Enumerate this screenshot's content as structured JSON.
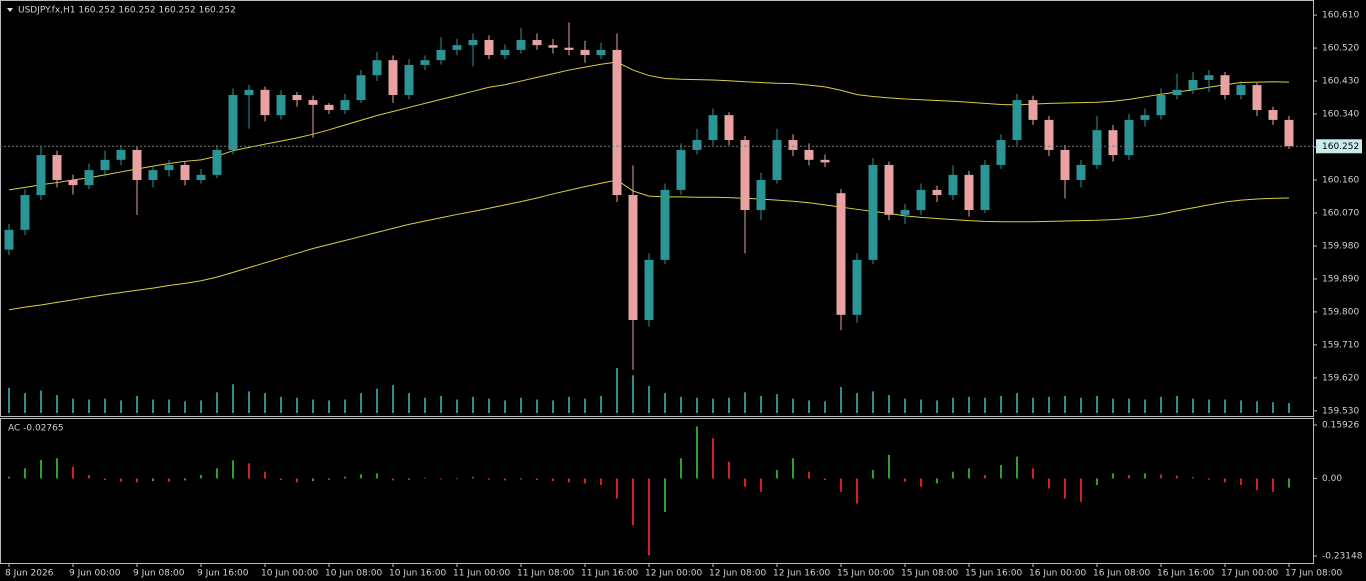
{
  "chart_data": [
    {
      "type": "candlestick",
      "title": "USDJPY.fx,H1  160.252 160.252 160.252 160.252",
      "categories": [
        "8 Jun 2026",
        null,
        null,
        null,
        "9 Jun 00:00",
        null,
        null,
        null,
        "9 Jun 08:00",
        null,
        null,
        null,
        "9 Jun 16:00",
        null,
        null,
        null,
        "10 Jun 00:00",
        null,
        null,
        null,
        "10 Jun 08:00",
        null,
        null,
        null,
        "10 Jun 16:00",
        null,
        null,
        null,
        "11 Jun 00:00",
        null,
        null,
        null,
        "11 Jun 08:00",
        null,
        null,
        null,
        "11 Jun 16:00",
        null,
        null,
        null,
        "12 Jun 00:00",
        null,
        null,
        null,
        "12 Jun 08:00",
        null,
        null,
        null,
        "12 Jun 16:00",
        null,
        null,
        null,
        "15 Jun 00:00",
        null,
        null,
        null,
        "15 Jun 08:00",
        null,
        null,
        null,
        "15 Jun 16:00",
        null,
        null,
        null,
        "16 Jun 00:00",
        null,
        null,
        null,
        "16 Jun 08:00",
        null,
        null,
        null,
        "16 Jun 16:00",
        null,
        null,
        null,
        "17 Jun 00:00",
        null,
        null,
        null,
        "17 Jun 08:00"
      ],
      "open": [
        159.97,
        160.024,
        160.119,
        160.228,
        160.16,
        160.146,
        160.187,
        160.215,
        160.242,
        160.16,
        160.187,
        160.201,
        160.16,
        160.174,
        160.242,
        160.392,
        160.406,
        160.337,
        160.392,
        160.378,
        160.365,
        160.351,
        160.378,
        160.446,
        160.487,
        160.392,
        160.474,
        160.487,
        160.515,
        160.528,
        160.542,
        160.501,
        160.515,
        160.542,
        160.528,
        160.521,
        160.515,
        160.501,
        160.515,
        160.119,
        159.778,
        159.942,
        160.133,
        160.242,
        160.269,
        160.337,
        160.269,
        160.078,
        160.16,
        160.269,
        160.242,
        160.215,
        160.124,
        159.792,
        159.942,
        160.201,
        160.065,
        160.078,
        160.133,
        160.119,
        160.174,
        160.078,
        160.201,
        160.269,
        160.378,
        160.324,
        160.242,
        160.16,
        160.201,
        160.296,
        160.228,
        160.324,
        160.337,
        160.392,
        160.406,
        160.433,
        160.446,
        160.392,
        160.419,
        160.351,
        160.324
      ],
      "high": [
        160.04,
        160.135,
        160.25,
        160.24,
        160.175,
        160.205,
        160.24,
        160.255,
        160.25,
        160.2,
        160.215,
        160.21,
        160.19,
        160.255,
        160.41,
        160.42,
        160.415,
        160.405,
        160.4,
        160.39,
        160.37,
        160.395,
        160.46,
        160.51,
        160.5,
        160.49,
        160.5,
        160.55,
        160.545,
        160.56,
        160.555,
        160.53,
        160.575,
        160.56,
        160.545,
        160.59,
        160.54,
        160.535,
        160.56,
        160.2,
        159.96,
        160.15,
        160.26,
        160.3,
        160.355,
        160.345,
        160.28,
        160.18,
        160.3,
        160.285,
        160.26,
        160.23,
        160.135,
        159.96,
        160.22,
        160.21,
        160.095,
        160.15,
        160.145,
        160.2,
        160.185,
        160.215,
        160.285,
        160.395,
        160.39,
        160.335,
        160.255,
        160.215,
        160.335,
        160.31,
        160.34,
        160.355,
        160.41,
        160.45,
        160.455,
        160.46,
        160.455,
        160.43,
        160.425,
        160.36,
        160.335
      ],
      "low": [
        159.955,
        160.01,
        160.105,
        160.14,
        160.12,
        160.135,
        160.17,
        160.2,
        160.065,
        160.14,
        160.17,
        160.145,
        160.15,
        160.165,
        160.23,
        160.3,
        160.32,
        160.325,
        160.36,
        160.275,
        160.34,
        160.34,
        160.37,
        160.43,
        160.37,
        160.38,
        160.46,
        160.475,
        160.5,
        160.47,
        160.49,
        160.49,
        160.505,
        160.515,
        160.505,
        160.5,
        160.48,
        160.49,
        160.1,
        159.642,
        159.76,
        159.93,
        160.12,
        160.23,
        160.255,
        160.255,
        159.96,
        160.05,
        160.15,
        160.225,
        160.2,
        160.195,
        159.75,
        159.77,
        159.93,
        160.05,
        160.04,
        160.065,
        160.1,
        160.105,
        160.06,
        160.07,
        160.19,
        160.255,
        160.31,
        160.225,
        160.11,
        160.14,
        160.19,
        160.21,
        160.215,
        160.305,
        160.325,
        160.38,
        160.395,
        160.4,
        160.38,
        160.38,
        160.335,
        160.31,
        160.245
      ],
      "close": [
        160.024,
        160.119,
        160.228,
        160.16,
        160.146,
        160.187,
        160.215,
        160.242,
        160.16,
        160.187,
        160.201,
        160.16,
        160.174,
        160.242,
        160.392,
        160.406,
        160.337,
        160.392,
        160.378,
        160.365,
        160.351,
        160.378,
        160.446,
        160.487,
        160.392,
        160.474,
        160.487,
        160.515,
        160.528,
        160.542,
        160.501,
        160.515,
        160.542,
        160.528,
        160.521,
        160.515,
        160.501,
        160.515,
        160.119,
        159.778,
        159.942,
        160.133,
        160.242,
        160.269,
        160.337,
        160.269,
        160.078,
        160.16,
        160.269,
        160.242,
        160.215,
        160.208,
        159.792,
        159.942,
        160.201,
        160.065,
        160.078,
        160.133,
        160.119,
        160.174,
        160.078,
        160.201,
        160.269,
        160.378,
        160.324,
        160.242,
        160.16,
        160.201,
        160.296,
        160.228,
        160.324,
        160.337,
        160.392,
        160.406,
        160.433,
        160.446,
        160.392,
        160.419,
        160.351,
        160.324,
        160.252
      ],
      "volume": [
        2800,
        2200,
        2500,
        2000,
        1600,
        1500,
        1600,
        1400,
        1900,
        1500,
        1500,
        1300,
        1400,
        2300,
        3200,
        2400,
        2200,
        1800,
        1700,
        1500,
        1400,
        1500,
        2200,
        2700,
        3100,
        2200,
        1700,
        1900,
        1500,
        1800,
        1600,
        1400,
        1700,
        1500,
        1400,
        1800,
        1600,
        1900,
        5000,
        4200,
        3000,
        2200,
        1800,
        1700,
        1600,
        1700,
        2300,
        1900,
        2100,
        1600,
        1400,
        1300,
        2900,
        2200,
        2400,
        2000,
        1600,
        1500,
        1400,
        1700,
        1800,
        1700,
        1900,
        2200,
        1700,
        1800,
        1900,
        1700,
        1900,
        1600,
        1600,
        1500,
        1800,
        1900,
        1600,
        1500,
        1500,
        1400,
        1300,
        1200,
        1100
      ],
      "moving_averages": [
        {
          "color": "#d8d040",
          "values": [
            160.133,
            160.14,
            160.147,
            160.153,
            160.16,
            160.166,
            160.174,
            160.182,
            160.19,
            160.198,
            160.205,
            160.211,
            160.215,
            160.225,
            160.24,
            160.249,
            160.258,
            160.266,
            160.275,
            160.285,
            160.297,
            160.31,
            160.323,
            160.336,
            160.347,
            160.358,
            160.369,
            160.38,
            160.391,
            160.402,
            160.413,
            160.42,
            160.43,
            160.44,
            160.45,
            160.46,
            160.468,
            160.476,
            160.482,
            160.46,
            160.445,
            160.437,
            160.435,
            160.434,
            160.433,
            160.431,
            160.428,
            160.426,
            160.424,
            160.423,
            160.419,
            160.414,
            160.405,
            160.393,
            160.388,
            160.384,
            160.381,
            160.379,
            160.377,
            160.375,
            160.372,
            160.369,
            160.366,
            160.365,
            160.367,
            160.369,
            160.37,
            160.371,
            160.372,
            160.375,
            160.38,
            160.387,
            160.394,
            160.4,
            160.406,
            160.413,
            160.42,
            160.426,
            160.427,
            160.428,
            160.427
          ]
        },
        {
          "color": "#d8d040",
          "values": [
            159.806,
            159.813,
            159.819,
            159.826,
            159.833,
            159.84,
            159.847,
            159.853,
            159.859,
            159.865,
            159.872,
            159.878,
            159.885,
            159.895,
            159.908,
            159.921,
            159.934,
            159.947,
            159.96,
            159.973,
            159.984,
            159.995,
            160.006,
            160.017,
            160.028,
            160.039,
            160.048,
            160.057,
            160.066,
            160.074,
            160.083,
            160.092,
            160.101,
            160.111,
            160.122,
            160.132,
            160.142,
            160.151,
            160.16,
            160.13,
            160.116,
            160.114,
            160.114,
            160.113,
            160.113,
            160.112,
            160.11,
            160.108,
            160.105,
            160.102,
            160.098,
            160.092,
            160.086,
            160.08,
            160.074,
            160.069,
            160.062,
            160.058,
            160.055,
            160.052,
            160.049,
            160.047,
            160.046,
            160.046,
            160.046,
            160.047,
            160.048,
            160.049,
            160.05,
            160.052,
            160.055,
            160.06,
            160.067,
            160.076,
            160.084,
            160.092,
            160.1,
            160.105,
            160.108,
            160.11,
            160.111
          ]
        }
      ],
      "up_color": "#2b9494",
      "down_color": "#e8a2a2",
      "volume_color": "#2b8f8f",
      "ylim": [
        159.516,
        160.643
      ],
      "yticks": [
        {
          "value": 159.53,
          "label": "159.530"
        },
        {
          "value": 159.62,
          "label": "159.620"
        },
        {
          "value": 159.71,
          "label": "159.710"
        },
        {
          "value": 159.8,
          "label": "159.800"
        },
        {
          "value": 159.89,
          "label": "159.890"
        },
        {
          "value": 159.98,
          "label": "159.980"
        },
        {
          "value": 160.07,
          "label": "160.070"
        },
        {
          "value": 160.16,
          "label": "160.160"
        },
        {
          "value": 160.25,
          "label": "160.250"
        },
        {
          "value": 160.34,
          "label": "160.340"
        },
        {
          "value": 160.43,
          "label": "160.430"
        },
        {
          "value": 160.52,
          "label": "160.520"
        },
        {
          "value": 160.61,
          "label": "160.610"
        }
      ],
      "last_price": 160.252
    },
    {
      "type": "bar",
      "title": "AC -0.02765",
      "values": [
        0.005,
        0.03,
        0.055,
        0.06,
        0.035,
        0.01,
        -0.005,
        -0.01,
        -0.012,
        -0.008,
        -0.01,
        -0.006,
        0.01,
        0.03,
        0.054,
        0.045,
        0.02,
        -0.005,
        -0.012,
        -0.008,
        -0.004,
        0.005,
        0.012,
        0.015,
        -0.006,
        -0.004,
        0.002,
        -0.003,
        -0.002,
        0.004,
        -0.004,
        -0.006,
        -0.003,
        -0.005,
        -0.008,
        -0.012,
        -0.015,
        -0.02,
        -0.06,
        -0.14,
        -0.23,
        -0.1,
        0.06,
        0.155,
        0.12,
        0.05,
        -0.025,
        -0.04,
        0.025,
        0.06,
        0.02,
        -0.005,
        -0.04,
        -0.075,
        0.025,
        0.07,
        -0.01,
        -0.025,
        -0.015,
        0.02,
        0.03,
        0.01,
        0.04,
        0.065,
        0.03,
        -0.03,
        -0.06,
        -0.07,
        -0.02,
        0.015,
        0.01,
        0.015,
        0.012,
        0.008,
        0.004,
        -0.004,
        -0.012,
        -0.02,
        -0.035,
        -0.04,
        -0.02765
      ],
      "up_color": "#2ea02e",
      "down_color": "#d42020",
      "ylim": [
        -0.2524,
        0.1772
      ],
      "yticks": [
        0.15926,
        {
          "value": 0,
          "label": "0.00"
        },
        -0.23148
      ]
    }
  ]
}
